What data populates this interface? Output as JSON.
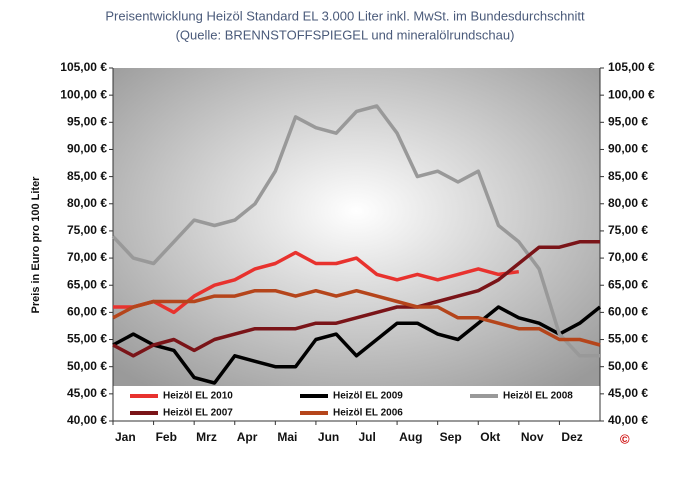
{
  "chart_data": {
    "type": "line",
    "title": "Preisentwicklung Heizöl Standard EL 3.000 Liter inkl. MwSt. im  Bundesdurchschnitt",
    "subtitle": "(Quelle: BRENNSTOFFSPIEGEL und mineralölrundschau)",
    "y_label": "Preis in Euro pro 100 Liter",
    "copyright": "©",
    "x": [
      0,
      0.5,
      1,
      1.5,
      2,
      2.5,
      3,
      3.5,
      4,
      4.5,
      5,
      5.5,
      6,
      6.5,
      7,
      7.5,
      8,
      8.5,
      9,
      9.5,
      10,
      10.5,
      11,
      11.5,
      12
    ],
    "xlim": [
      0,
      12
    ],
    "xticks": [
      {
        "value": 0,
        "label": "Jan"
      },
      {
        "value": 1,
        "label": "Feb"
      },
      {
        "value": 2,
        "label": "Mrz"
      },
      {
        "value": 3,
        "label": "Apr"
      },
      {
        "value": 4,
        "label": "Mai"
      },
      {
        "value": 5,
        "label": "Jun"
      },
      {
        "value": 6,
        "label": "Jul"
      },
      {
        "value": 7,
        "label": "Aug"
      },
      {
        "value": 8,
        "label": "Sep"
      },
      {
        "value": 9,
        "label": "Okt"
      },
      {
        "value": 10,
        "label": "Nov"
      },
      {
        "value": 11,
        "label": "Dez"
      }
    ],
    "ylim": [
      40,
      105
    ],
    "yticks": [
      {
        "value": 40,
        "label": "40,00 €"
      },
      {
        "value": 45,
        "label": "45,00 €"
      },
      {
        "value": 50,
        "label": "50,00 €"
      },
      {
        "value": 55,
        "label": "55,00 €"
      },
      {
        "value": 60,
        "label": "60,00 €"
      },
      {
        "value": 65,
        "label": "65,00 €"
      },
      {
        "value": 70,
        "label": "70,00 €"
      },
      {
        "value": 75,
        "label": "75,00 €"
      },
      {
        "value": 80,
        "label": "80,00 €"
      },
      {
        "value": 85,
        "label": "85,00 €"
      },
      {
        "value": 90,
        "label": "90,00 €"
      },
      {
        "value": 95,
        "label": "95,00 €"
      },
      {
        "value": 100,
        "label": "100,00 €"
      },
      {
        "value": 105,
        "label": "105,00 €"
      }
    ],
    "y2lim": [
      40,
      105
    ],
    "y2ticks": [
      {
        "value": 40,
        "label": "40,00 €"
      },
      {
        "value": 45,
        "label": "45,00 €"
      },
      {
        "value": 50,
        "label": "50,00 €"
      },
      {
        "value": 55,
        "label": "55,00 €"
      },
      {
        "value": 60,
        "label": "60,00 €"
      },
      {
        "value": 65,
        "label": "65,00 €"
      },
      {
        "value": 70,
        "label": "70,00 €"
      },
      {
        "value": 75,
        "label": "75,00 €"
      },
      {
        "value": 80,
        "label": "80,00 €"
      },
      {
        "value": 85,
        "label": "85,00 €"
      },
      {
        "value": 90,
        "label": "90,00 €"
      },
      {
        "value": 95,
        "label": "95,00 €"
      },
      {
        "value": 100,
        "label": "100,00 €"
      },
      {
        "value": 105,
        "label": "105,00 €"
      }
    ],
    "series": [
      {
        "name": "Heizöl EL 2010",
        "color": "#e8322e",
        "values": [
          61,
          61,
          62,
          60,
          63,
          65,
          66,
          68,
          69,
          71,
          69,
          69,
          70,
          67,
          66,
          67,
          66,
          67,
          68,
          67,
          67.5,
          null,
          null,
          null,
          null
        ]
      },
      {
        "name": "Heizöl EL 2009",
        "color": "#000000",
        "values": [
          54,
          56,
          54,
          53,
          48,
          47,
          52,
          51,
          50,
          50,
          55,
          56,
          52,
          55,
          58,
          58,
          56,
          55,
          58,
          61,
          59,
          58,
          56,
          58,
          61
        ]
      },
      {
        "name": "Heizöl EL 2008",
        "color": "#999999",
        "values": [
          74,
          70,
          69,
          73,
          77,
          76,
          77,
          80,
          86,
          96,
          94,
          93,
          97,
          98,
          93,
          85,
          86,
          84,
          86,
          76,
          73,
          68,
          56,
          52,
          52
        ]
      },
      {
        "name": "Heizöl EL 2007",
        "color": "#7a1418",
        "values": [
          54,
          52,
          54,
          55,
          53,
          55,
          56,
          57,
          57,
          57,
          58,
          58,
          59,
          60,
          61,
          61,
          62,
          63,
          64,
          66,
          69,
          72,
          72,
          73,
          73
        ]
      },
      {
        "name": "Heizöl EL 2006",
        "color": "#b5451b",
        "values": [
          59,
          61,
          62,
          62,
          62,
          63,
          63,
          64,
          64,
          63,
          64,
          63,
          64,
          63,
          62,
          61,
          61,
          59,
          59,
          58,
          57,
          57,
          55,
          55,
          54
        ]
      }
    ]
  }
}
